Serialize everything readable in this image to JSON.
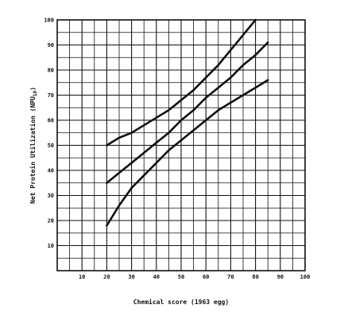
{
  "chart_data": {
    "type": "line",
    "title": "",
    "xlabel": "Chemical score (1963 egg)",
    "ylabel": "Net Protein Utilization (NPU10)",
    "ylabel_main": "Net Protein Utilization (NPU",
    "ylabel_sub": "10",
    "ylabel_close": ")",
    "xlim": [
      0,
      100
    ],
    "ylim": [
      0,
      100
    ],
    "x_ticks": [
      10,
      20,
      30,
      40,
      50,
      60,
      70,
      80,
      90,
      100
    ],
    "y_ticks": [
      10,
      20,
      30,
      40,
      50,
      60,
      70,
      80,
      90,
      100
    ],
    "x_tick_labels": [
      "10",
      "20",
      "30",
      "40",
      "50",
      "60",
      "70",
      "80",
      "90",
      "100"
    ],
    "y_tick_labels": [
      "10",
      "20",
      "30",
      "40",
      "50",
      "60",
      "70",
      "80",
      "90",
      "100"
    ],
    "grid": true,
    "grid_step": 5,
    "legend": "none",
    "series": [
      {
        "x": [
          20,
          25,
          30,
          35,
          40,
          45,
          50,
          55,
          60,
          65,
          70,
          75,
          80
        ],
        "y": [
          50,
          53,
          55,
          58,
          61,
          64,
          68,
          72,
          77,
          82,
          88,
          94,
          100
        ],
        "color": "#111111"
      },
      {
        "x": [
          20,
          25,
          30,
          35,
          40,
          45,
          50,
          55,
          60,
          65,
          70,
          75,
          80,
          85
        ],
        "y": [
          35,
          39,
          43,
          47,
          51,
          55,
          60,
          64,
          69,
          73,
          77,
          82,
          86,
          91
        ],
        "color": "#111111"
      },
      {
        "x": [
          20,
          25,
          30,
          35,
          40,
          45,
          50,
          55,
          60,
          65,
          70,
          75,
          80,
          85
        ],
        "y": [
          18,
          26,
          33,
          38,
          43,
          48,
          52,
          56,
          60,
          64,
          67,
          70,
          73,
          76
        ],
        "color": "#111111"
      }
    ]
  }
}
